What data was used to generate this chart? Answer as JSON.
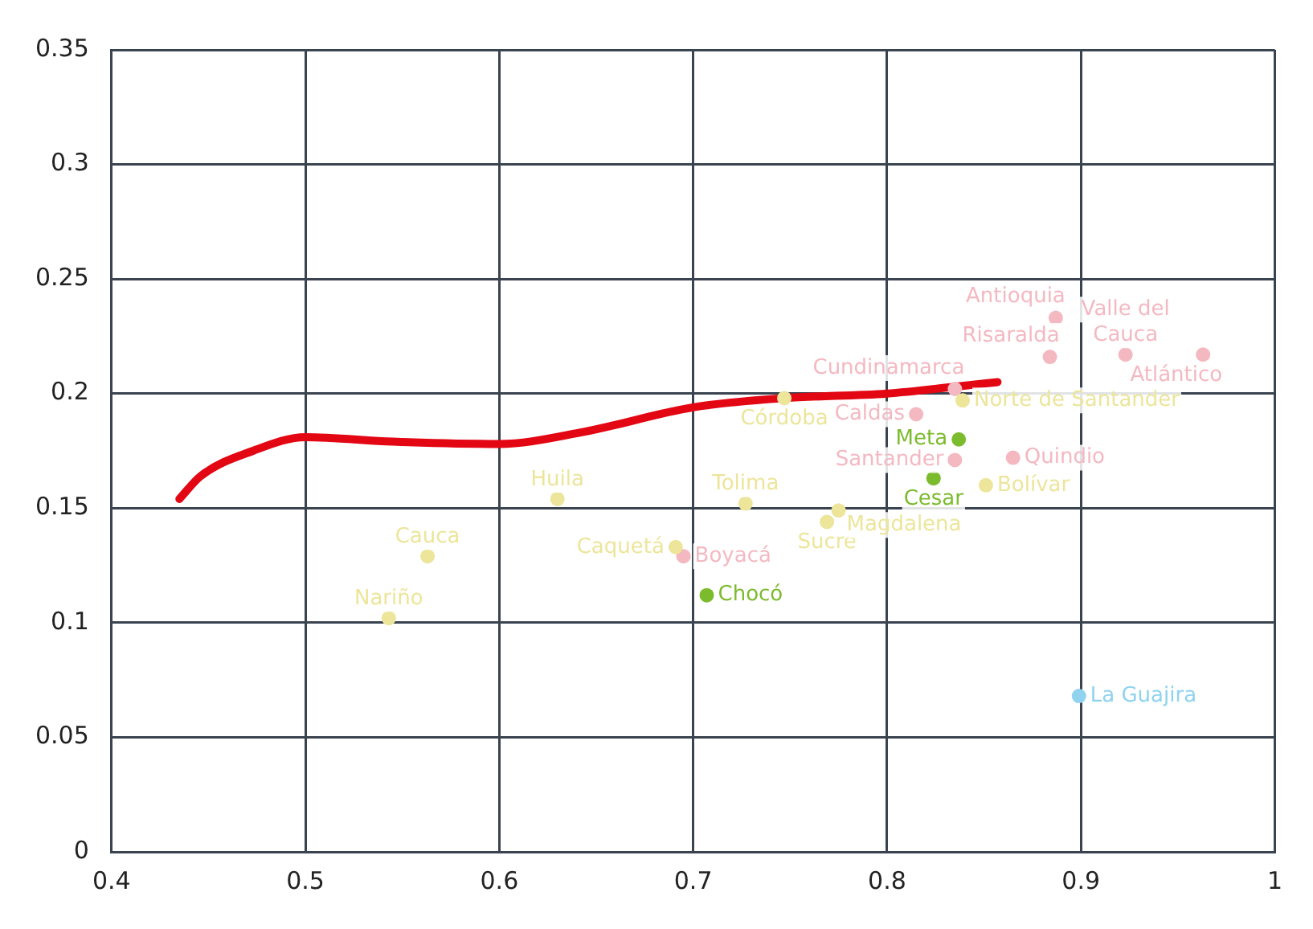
{
  "chart_data": {
    "type": "scatter",
    "xlim": [
      0.4,
      1
    ],
    "ylim": [
      0,
      0.35
    ],
    "xticks": [
      0.4,
      0.5,
      0.6,
      0.7,
      0.8,
      0.9,
      1
    ],
    "yticks": [
      0,
      0.05,
      0.1,
      0.15,
      0.2,
      0.25,
      0.3,
      0.35
    ],
    "grid": true,
    "legend": false,
    "marker": "circle",
    "series": [
      {
        "color": "#ece59a",
        "x": [
          0.543,
          0.563,
          0.63,
          0.691,
          0.727,
          0.747,
          0.769,
          0.775,
          0.839,
          0.851
        ],
        "values": [
          0.102,
          0.129,
          0.154,
          0.133,
          0.152,
          0.198,
          0.144,
          0.149,
          0.197,
          0.16
        ]
      },
      {
        "color": "#f4b8c1",
        "x": [
          0.695,
          0.815,
          0.835,
          0.835,
          0.865,
          0.887,
          0.884,
          0.923,
          0.963
        ],
        "values": [
          0.129,
          0.191,
          0.202,
          0.171,
          0.172,
          0.233,
          0.216,
          0.217,
          0.217
        ]
      },
      {
        "color": "#7cbb2e",
        "x": [
          0.707,
          0.837,
          0.824
        ],
        "values": [
          0.112,
          0.18,
          0.163
        ]
      },
      {
        "color": "#8fd3f0",
        "x": [
          0.899
        ],
        "values": [
          0.068
        ]
      },
      {
        "type": "line",
        "color": "#e30613",
        "line_style": "solid",
        "marker": "none",
        "x": [
          0.435,
          0.446,
          0.473,
          0.5,
          0.545,
          0.6,
          0.642,
          0.7,
          0.747,
          0.8,
          0.835,
          0.857
        ],
        "values": [
          0.154,
          0.164,
          0.175,
          0.181,
          0.179,
          0.178,
          0.183,
          0.194,
          0.198,
          0.2,
          0.203,
          0.205
        ]
      }
    ],
    "annotations": [
      {
        "text": "Nariño",
        "x": 0.543,
        "y": 0.102
      },
      {
        "text": "Cauca",
        "x": 0.563,
        "y": 0.129
      },
      {
        "text": "Huila",
        "x": 0.63,
        "y": 0.154
      },
      {
        "text": "Caquetá",
        "x": 0.691,
        "y": 0.133
      },
      {
        "text": "Boyacá",
        "x": 0.695,
        "y": 0.129
      },
      {
        "text": "Chocó",
        "x": 0.707,
        "y": 0.112
      },
      {
        "text": "Tolima",
        "x": 0.727,
        "y": 0.152
      },
      {
        "text": "Córdoba",
        "x": 0.747,
        "y": 0.198
      },
      {
        "text": "Sucre",
        "x": 0.769,
        "y": 0.144
      },
      {
        "text": "Magdalena",
        "x": 0.775,
        "y": 0.149
      },
      {
        "text": "Caldas",
        "x": 0.815,
        "y": 0.191
      },
      {
        "text": "Cundinamarca",
        "x": 0.835,
        "y": 0.202
      },
      {
        "text": "Norte de Santander",
        "x": 0.839,
        "y": 0.197
      },
      {
        "text": "Meta",
        "x": 0.837,
        "y": 0.18
      },
      {
        "text": "Santander",
        "x": 0.835,
        "y": 0.171
      },
      {
        "text": "Cesar",
        "x": 0.824,
        "y": 0.163
      },
      {
        "text": "Bolívar",
        "x": 0.851,
        "y": 0.16
      },
      {
        "text": "Quindio",
        "x": 0.865,
        "y": 0.172
      },
      {
        "text": "Antioquia",
        "x": 0.887,
        "y": 0.233
      },
      {
        "text": "Risaralda",
        "x": 0.884,
        "y": 0.216
      },
      {
        "text": "Valle del Cauca",
        "x": 0.923,
        "y": 0.217
      },
      {
        "text": "Atlántico",
        "x": 0.963,
        "y": 0.217
      },
      {
        "text": "La Guajira",
        "x": 0.899,
        "y": 0.068
      }
    ]
  }
}
